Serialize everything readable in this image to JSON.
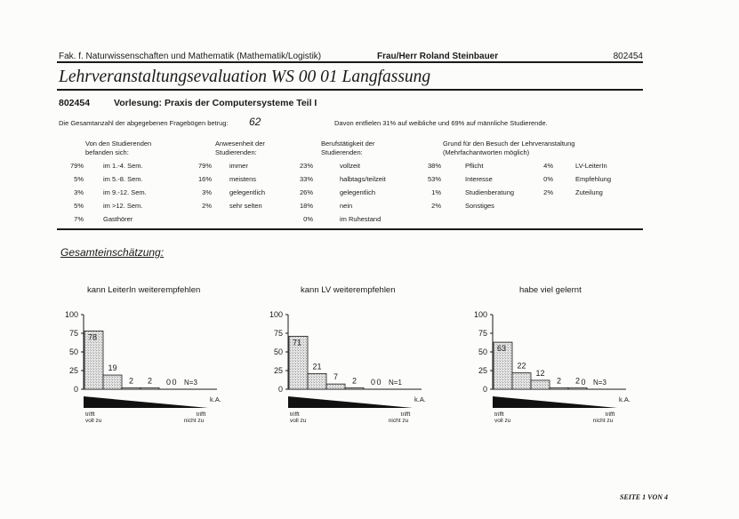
{
  "header": {
    "faculty": "Fak. f. Naturwissenschaften und Mathematik (Mathematik/Logistik)",
    "lecturer": "Frau/Herr Roland Steinbauer",
    "code": "802454"
  },
  "title": "Lehrveranstaltungsevaluation WS 00 01 Langfassung",
  "course": {
    "code": "802454",
    "name": "Vorlesung: Praxis der Computersysteme Teil I"
  },
  "total": {
    "label": "Die Gesamtanzahl der abgegebenen Fragebögen betrug:",
    "value": "62"
  },
  "gender_note": "Davon entfielen 31% auf weibliche und 69% auf männliche Studierende.",
  "columns": [
    {
      "heading": [
        "Von den Studierenden",
        "befanden sich:"
      ],
      "rows": [
        {
          "pct": "79%",
          "label": "im 1.-4. Sem."
        },
        {
          "pct": "5%",
          "label": "im 5.-8. Sem."
        },
        {
          "pct": "3%",
          "label": "im 9.-12. Sem."
        },
        {
          "pct": "5%",
          "label": "im >12. Sem."
        },
        {
          "pct": "7%",
          "label": "Gasthörer"
        }
      ]
    },
    {
      "heading": [
        "Anwesenheit der",
        "Studierenden:"
      ],
      "rows": [
        {
          "pct": "79%",
          "label": "immer"
        },
        {
          "pct": "16%",
          "label": "meistens"
        },
        {
          "pct": "3%",
          "label": "gelegentlich"
        },
        {
          "pct": "2%",
          "label": "sehr selten"
        }
      ]
    },
    {
      "heading": [
        "Berufstätigkeit der",
        "Studierenden:"
      ],
      "rows": [
        {
          "pct": "23%",
          "label": "vollzeit"
        },
        {
          "pct": "33%",
          "label": "halbtags/teilzeit"
        },
        {
          "pct": "26%",
          "label": "gelegentlich"
        },
        {
          "pct": "18%",
          "label": "nein"
        },
        {
          "pct": "0%",
          "label": "im Ruhestand"
        }
      ]
    },
    {
      "heading": [
        "Grund für den Besuch der Lehrveranstaltung",
        "(Mehrfachantworten möglich)"
      ],
      "rows": [
        {
          "pct": "38%",
          "label": "Pflicht"
        },
        {
          "pct": "53%",
          "label": "Interesse"
        },
        {
          "pct": "1%",
          "label": "Studienberatung"
        },
        {
          "pct": "2%",
          "label": "Sonstiges"
        }
      ]
    },
    {
      "heading": [
        "",
        ""
      ],
      "rows": [
        {
          "pct": "4%",
          "label": "LV-LeiterIn"
        },
        {
          "pct": "0%",
          "label": "Empfehlung"
        },
        {
          "pct": "2%",
          "label": "Zuteilung"
        }
      ]
    }
  ],
  "section_title": "Gesamteinschätzung:",
  "chart_data": [
    {
      "type": "bar",
      "title": "kann LeiterIn weiterempfehlen",
      "categories": [
        "1",
        "2",
        "3",
        "4",
        "5"
      ],
      "values": [
        78,
        19,
        2,
        2,
        0
      ],
      "ka_value": 0,
      "n_label": "N=3",
      "ylim": [
        0,
        100
      ],
      "yticks": [
        "100",
        "75",
        "50",
        "25",
        "0"
      ]
    },
    {
      "type": "bar",
      "title": "kann LV weiterempfehlen",
      "categories": [
        "1",
        "2",
        "3",
        "4",
        "5"
      ],
      "values": [
        71,
        21,
        7,
        2,
        0
      ],
      "ka_value": 0,
      "n_label": "N=1",
      "ylim": [
        0,
        100
      ],
      "yticks": [
        "100",
        "75",
        "50",
        "25",
        "0"
      ]
    },
    {
      "type": "bar",
      "title": "habe viel gelernt",
      "categories": [
        "1",
        "2",
        "3",
        "4",
        "5"
      ],
      "values": [
        63,
        22,
        12,
        2,
        2
      ],
      "ka_value": 0,
      "n_label": "N=3",
      "ylim": [
        0,
        100
      ],
      "yticks": [
        "100",
        "75",
        "50",
        "25",
        "0"
      ]
    }
  ],
  "scale_labels": {
    "left": [
      "trifft",
      "voll zu"
    ],
    "right": [
      "trifft",
      "nicht zu"
    ],
    "ka": "k.A."
  },
  "footer": "SEITE 1 VON 4"
}
